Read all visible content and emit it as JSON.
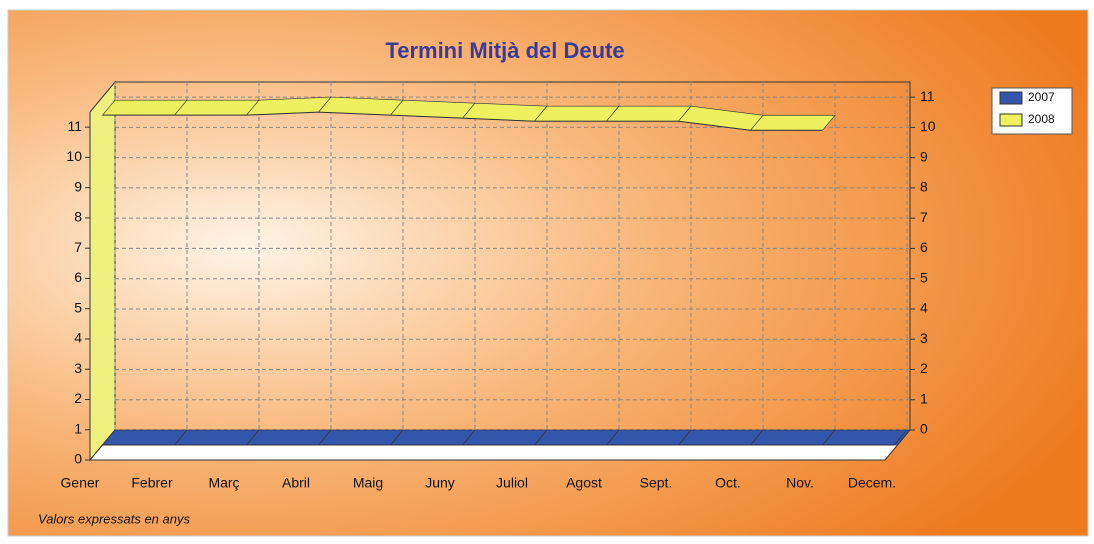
{
  "chart_data": {
    "type": "area3d",
    "title": "Termini Mitjà del Deute",
    "categories": [
      "Gener",
      "Febrer",
      "Març",
      "Abril",
      "Maig",
      "Juny",
      "Juliol",
      "Agost",
      "Sept.",
      "Oct.",
      "Nov.",
      "Decem."
    ],
    "series": [
      {
        "name": "2007",
        "color": "#3355aa",
        "values": [
          0,
          0,
          0,
          0,
          0,
          0,
          0,
          0,
          0,
          0,
          0,
          0
        ]
      },
      {
        "name": "2008",
        "color": "#eef060",
        "values": [
          10.9,
          10.9,
          10.9,
          11.0,
          10.9,
          10.8,
          10.7,
          10.7,
          10.7,
          10.4,
          10.4,
          null
        ]
      }
    ],
    "ylim": [
      0,
      11.5
    ],
    "yticks": [
      0,
      1,
      2,
      3,
      4,
      5,
      6,
      7,
      8,
      9,
      10,
      11
    ],
    "y2lim": [
      0,
      11.5
    ],
    "y2ticks": [
      0,
      1,
      2,
      3,
      4,
      5,
      6,
      7,
      8,
      9,
      10,
      11
    ],
    "grid": true,
    "legend": "top-right",
    "footnote": "Valors expressats en anys"
  }
}
